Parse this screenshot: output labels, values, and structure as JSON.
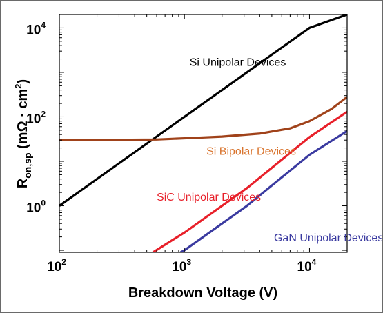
{
  "chart_data": {
    "type": "line",
    "title": "",
    "xlabel": "Breakdown Voltage (V)",
    "ylabel": "R_on,sp (mΩ · cm^2)",
    "ylabel_parts": {
      "base": "R",
      "sub": "on,sp",
      "unit": " (mΩ · cm",
      "unit_exp": "2",
      "unit_end": ")"
    },
    "x_scale": "log",
    "y_scale": "log",
    "xlim": [
      100,
      20000
    ],
    "ylim": [
      0.09,
      20000
    ],
    "x_ticks": [
      {
        "value": 100,
        "base": "10",
        "exp": "2"
      },
      {
        "value": 1000,
        "base": "10",
        "exp": "3"
      },
      {
        "value": 10000,
        "base": "10",
        "exp": "4"
      }
    ],
    "y_ticks": [
      {
        "value": 1,
        "base": "10",
        "exp": "0"
      },
      {
        "value": 100,
        "base": "10",
        "exp": "2"
      },
      {
        "value": 10000,
        "base": "10",
        "exp": "4"
      }
    ],
    "grid": false,
    "legend": "none",
    "series": [
      {
        "name": "Si Unipolar Devices",
        "color": "#000000",
        "x": [
          100,
          316,
          1000,
          3162,
          10000,
          20000
        ],
        "y": [
          1.0,
          10.0,
          100.0,
          1000.0,
          10000.0,
          20000.0
        ]
      },
      {
        "name": "Si Bipolar Devices",
        "color": "#a0421a",
        "x": [
          100,
          300,
          600,
          1000,
          2000,
          4000,
          7000,
          10000,
          15000,
          20000
        ],
        "y": [
          30,
          30.5,
          31,
          33,
          36,
          42,
          55,
          80,
          150,
          280
        ]
      },
      {
        "name": "SiC Unipolar Devices",
        "color": "#e8202a",
        "x": [
          560,
          1000,
          3162,
          10000,
          20000
        ],
        "y": [
          0.09,
          0.25,
          2.5,
          35,
          130
        ]
      },
      {
        "name": "GaN Unipolar Devices",
        "color": "#3a3aa0",
        "x": [
          930,
          1000,
          3162,
          10000,
          20000
        ],
        "y": [
          0.09,
          0.1,
          1.0,
          14,
          48
        ]
      }
    ],
    "annotations": [
      {
        "text": "Si Unipolar Devices",
        "color": "#000000",
        "x": 1100,
        "y": 1400
      },
      {
        "text": "Si Bipolar Devices",
        "color": "#d9742e",
        "x": 1500,
        "y": 14
      },
      {
        "text": "SiC Unipolar Devices",
        "color": "#e8202a",
        "x": 600,
        "y": 1.3
      },
      {
        "text": "GaN Unipolar Devices",
        "color": "#3a3aa0",
        "x": 5200,
        "y": 0.16
      }
    ]
  }
}
